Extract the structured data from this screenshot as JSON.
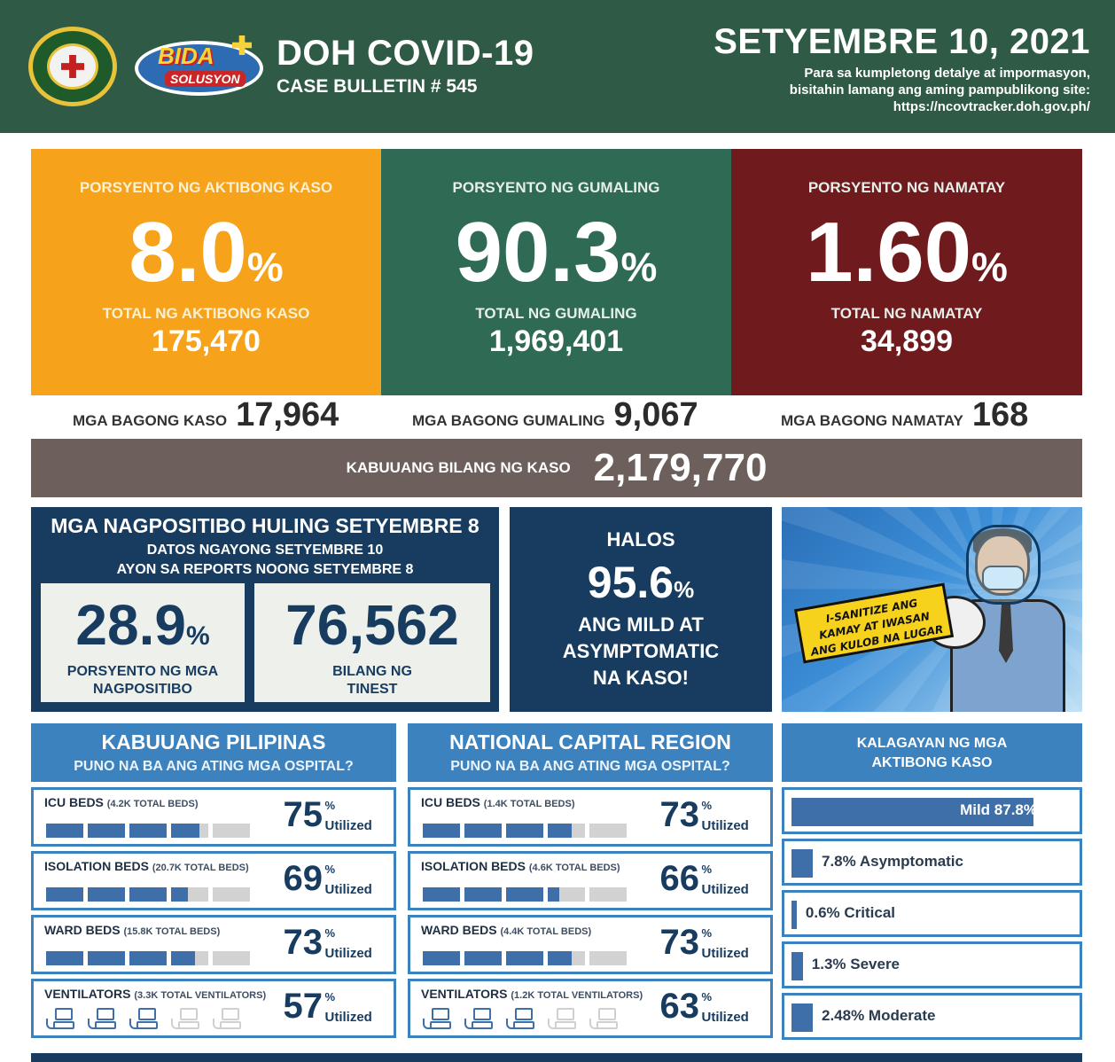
{
  "header": {
    "title": "DOH COVID-19",
    "subtitle": "CASE BULLETIN # 545",
    "date": "SETYEMBRE 10, 2021",
    "info_line1": "Para sa kumpletong detalye at impormasyon,",
    "info_line2": "bisitahin lamang ang aming pampublikong site:",
    "info_line3": "https://ncovtracker.doh.gov.ph/",
    "bida_word1": "BIDA",
    "bida_word2": "SOLUSYON"
  },
  "stats": {
    "active": {
      "label": "PORSYENTO NG AKTIBONG KASO",
      "pct": "8.0",
      "total_label": "TOTAL NG AKTIBONG KASO",
      "total": "175,470",
      "color": "#f7a21b"
    },
    "recovered": {
      "label": "PORSYENTO NG GUMALING",
      "pct": "90.3",
      "total_label": "TOTAL NG GUMALING",
      "total": "1,969,401",
      "color": "#2f6a54"
    },
    "deaths": {
      "label": "PORSYENTO NG NAMATAY",
      "pct": "1.60",
      "total_label": "TOTAL NG NAMATAY",
      "total": "34,899",
      "color": "#6f1b1d"
    },
    "pct_symbol": "%"
  },
  "new_cases": {
    "cases_label": "MGA BAGONG KASO",
    "cases": "17,964",
    "recovered_label": "MGA BAGONG GUMALING",
    "recovered": "9,067",
    "deaths_label": "MGA BAGONG NAMATAY",
    "deaths": "168"
  },
  "total": {
    "label": "KABUUANG BILANG NG KASO",
    "value": "2,179,770"
  },
  "positivity": {
    "heading": "MGA NAGPOSITIBO HULING SETYEMBRE 8",
    "sub1": "DATOS NGAYONG SETYEMBRE 10",
    "sub2": "AYON SA REPORTS NOONG SETYEMBRE 8",
    "rate": "28.9",
    "rate_label1": "PORSYENTO NG MGA",
    "rate_label2": "NAGPOSITIBO",
    "tested": "76,562",
    "tested_label1": "BILANG NG",
    "tested_label2": "TINEST"
  },
  "halos": {
    "line1": "HALOS",
    "value": "95.6",
    "line2": "ANG MILD AT",
    "line3": "ASYMPTOMATIC",
    "line4": "NA KASO!"
  },
  "sign": {
    "line1": "I-SANITIZE ANG",
    "line2": "KAMAY AT IWASAN",
    "line3": "ANG KULOB NA LUGAR"
  },
  "hospitals": {
    "utilized_label": "Utilized",
    "pct_symbol": "%",
    "ph": {
      "title": "KABUUANG PILIPINAS",
      "subtitle": "PUNO NA BA ANG ATING MGA OSPITAL?",
      "rows": [
        {
          "label": "ICU BEDS",
          "capacity": "(4.2K TOTAL BEDS)",
          "value": "75",
          "fraction": 0.75
        },
        {
          "label": "ISOLATION BEDS",
          "capacity": "(20.7K TOTAL BEDS)",
          "value": "69",
          "fraction": 0.69
        },
        {
          "label": "WARD BEDS",
          "capacity": "(15.8K TOTAL BEDS)",
          "value": "73",
          "fraction": 0.73
        },
        {
          "label": "VENTILATORS",
          "capacity": "(3.3K TOTAL VENTILATORS)",
          "value": "57",
          "fraction": 0.57
        }
      ]
    },
    "ncr": {
      "title": "NATIONAL CAPITAL REGION",
      "subtitle": "PUNO NA BA ANG ATING MGA OSPITAL?",
      "rows": [
        {
          "label": "ICU BEDS",
          "capacity": "(1.4K TOTAL BEDS)",
          "value": "73",
          "fraction": 0.73
        },
        {
          "label": "ISOLATION BEDS",
          "capacity": "(4.6K TOTAL BEDS)",
          "value": "66",
          "fraction": 0.66
        },
        {
          "label": "WARD BEDS",
          "capacity": "(4.4K TOTAL BEDS)",
          "value": "73",
          "fraction": 0.73
        },
        {
          "label": "VENTILATORS",
          "capacity": "(1.2K TOTAL VENTILATORS)",
          "value": "63",
          "fraction": 0.63
        }
      ]
    }
  },
  "status": {
    "heading1": "KALAGAYAN NG MGA",
    "heading2": "AKTIBONG KASO",
    "rows": [
      {
        "text": "Mild 87.8%",
        "fraction": 0.878
      },
      {
        "text": "7.8% Asymptomatic",
        "fraction": 0.078
      },
      {
        "text": "0.6% Critical",
        "fraction": 0.006
      },
      {
        "text": "1.3% Severe",
        "fraction": 0.013
      },
      {
        "text": "2.48% Moderate",
        "fraction": 0.0248
      }
    ]
  }
}
